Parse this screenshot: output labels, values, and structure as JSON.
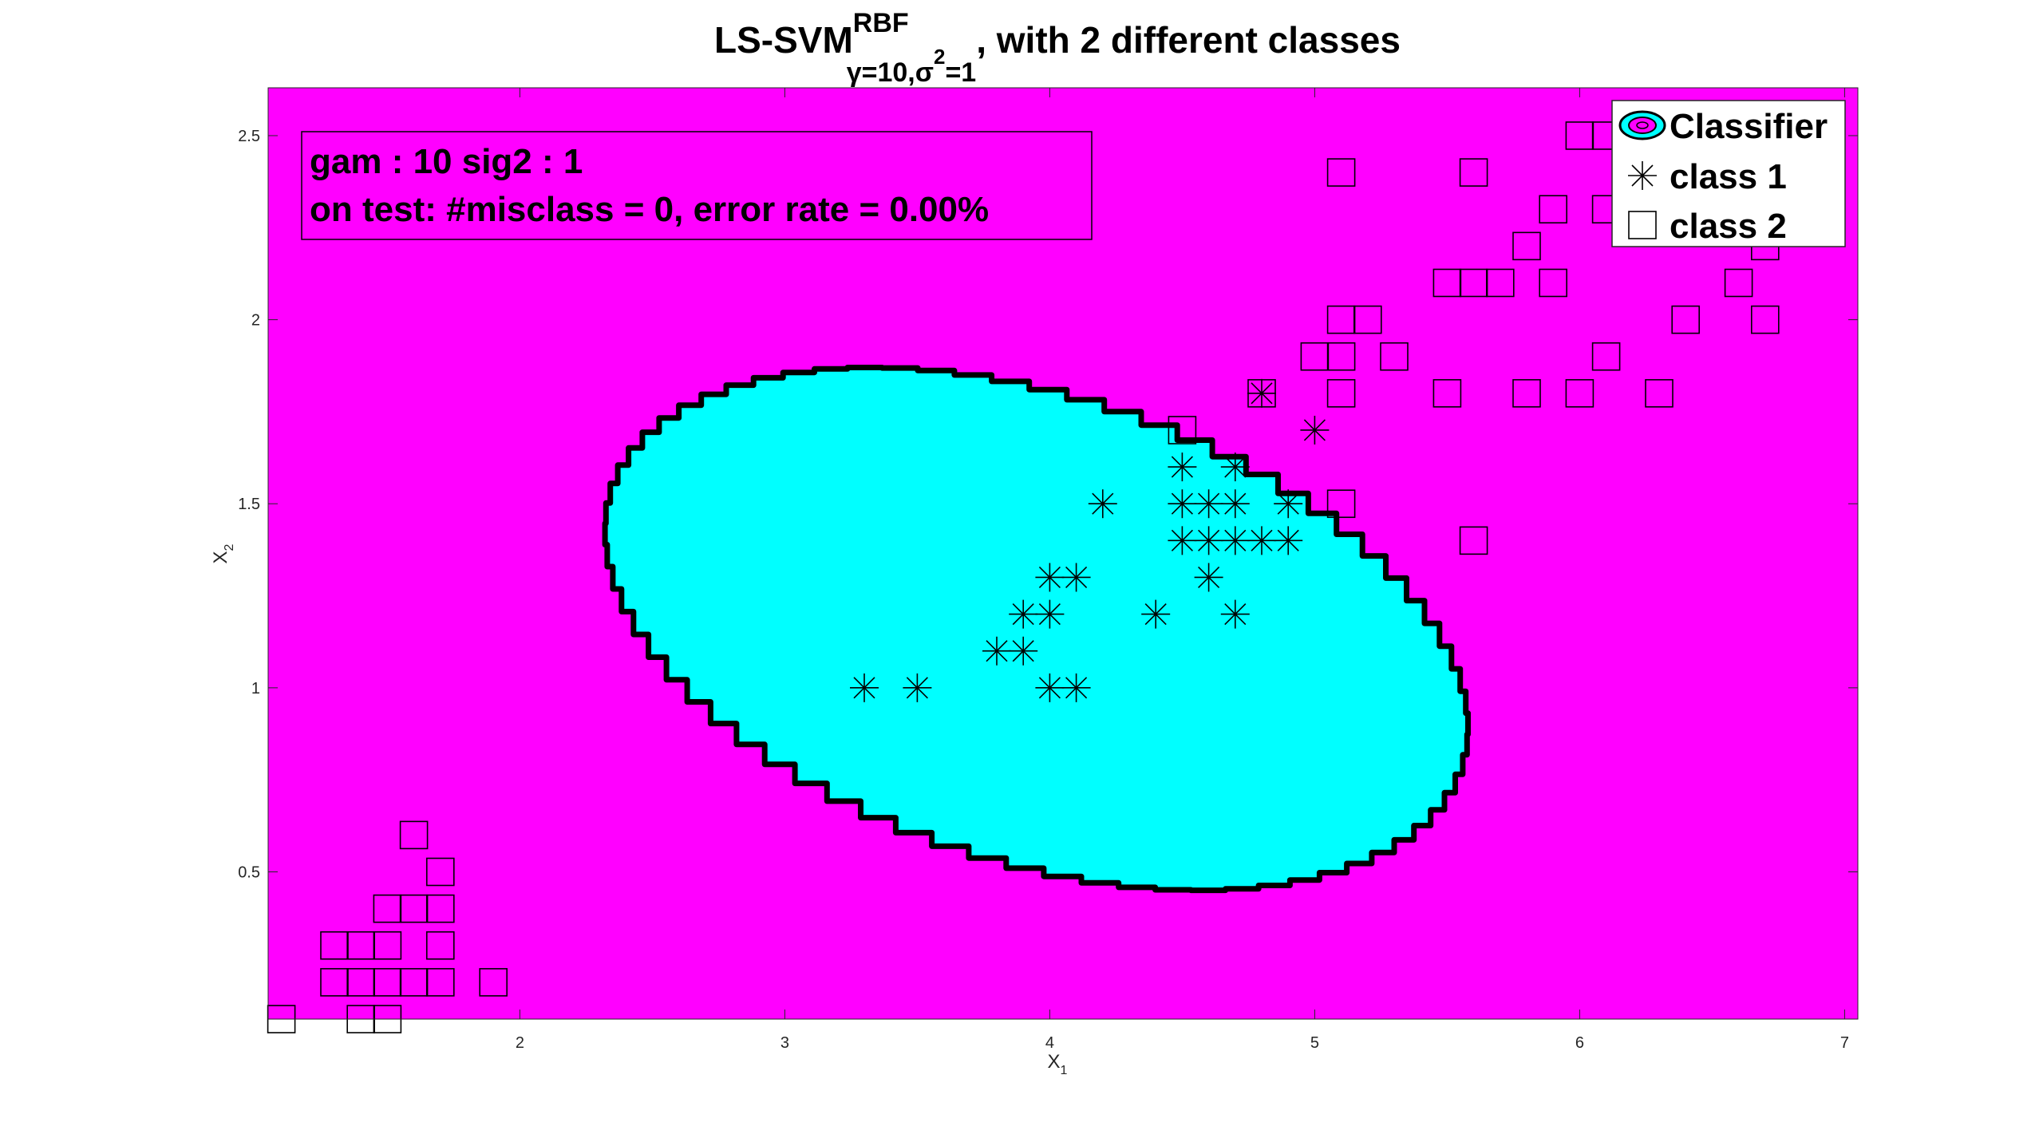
{
  "title": {
    "main": "LS-SVM",
    "sup": "RBF",
    "sub_gamma": "γ=10,",
    "sub_sigma": "σ",
    "sub_sigma_pow": "2",
    "sub_sigma_val": "=1",
    "rest": ", with 2 different classes"
  },
  "annotation": {
    "line1": "gam : 10   sig2 : 1",
    "line2": "on test: #misclass = 0, error rate = 0.00%"
  },
  "legend": {
    "items": [
      {
        "label": "Classifier",
        "marker": "contour-icon"
      },
      {
        "label": "class 1",
        "marker": "asterisk-icon"
      },
      {
        "label": "class 2",
        "marker": "square-icon"
      }
    ]
  },
  "colors": {
    "background_region": "#ff00ff",
    "classifier_region": "#00ffff",
    "boundary": "#000000",
    "markers": "#000000"
  },
  "chart_data": {
    "type": "scatter",
    "xlabel": "X",
    "xlabel_sub": "1",
    "ylabel": "X",
    "ylabel_sub": "2",
    "xlim": [
      1.05,
      7.05
    ],
    "ylim": [
      0.1,
      2.63
    ],
    "xticks": [
      2,
      3,
      4,
      5,
      6,
      7
    ],
    "yticks": [
      0.5,
      1,
      1.5,
      2,
      2.5
    ],
    "tick_labels_x": [
      "2",
      "3",
      "4",
      "5",
      "6",
      "7"
    ],
    "tick_labels_y": [
      "0.5",
      "1",
      "1.5",
      "2",
      "2.5"
    ],
    "boundary_ellipse": {
      "center": [
        3.95,
        1.16
      ],
      "semi_x": 1.65,
      "semi_y": 0.66,
      "rotation_deg": -10
    },
    "series": [
      {
        "name": "class 1",
        "marker": "asterisk",
        "points": [
          [
            3.3,
            1.0
          ],
          [
            3.5,
            1.0
          ],
          [
            4.0,
            1.0
          ],
          [
            4.1,
            1.0
          ],
          [
            3.8,
            1.1
          ],
          [
            3.9,
            1.1
          ],
          [
            3.9,
            1.2
          ],
          [
            4.0,
            1.2
          ],
          [
            4.4,
            1.2
          ],
          [
            4.7,
            1.2
          ],
          [
            4.0,
            1.3
          ],
          [
            4.1,
            1.3
          ],
          [
            4.6,
            1.3
          ],
          [
            4.5,
            1.4
          ],
          [
            4.6,
            1.4
          ],
          [
            4.7,
            1.4
          ],
          [
            4.8,
            1.4
          ],
          [
            4.9,
            1.4
          ],
          [
            4.2,
            1.5
          ],
          [
            4.5,
            1.5
          ],
          [
            4.6,
            1.5
          ],
          [
            4.7,
            1.5
          ],
          [
            4.9,
            1.5
          ],
          [
            4.5,
            1.6
          ],
          [
            4.7,
            1.6
          ],
          [
            5.0,
            1.7
          ],
          [
            4.8,
            1.8
          ]
        ]
      },
      {
        "name": "class 2",
        "marker": "square",
        "points": [
          [
            1.1,
            0.1
          ],
          [
            1.4,
            0.1
          ],
          [
            1.5,
            0.1
          ],
          [
            1.3,
            0.2
          ],
          [
            1.4,
            0.2
          ],
          [
            1.5,
            0.2
          ],
          [
            1.6,
            0.2
          ],
          [
            1.7,
            0.2
          ],
          [
            1.9,
            0.2
          ],
          [
            1.3,
            0.3
          ],
          [
            1.4,
            0.3
          ],
          [
            1.5,
            0.3
          ],
          [
            1.7,
            0.3
          ],
          [
            1.5,
            0.4
          ],
          [
            1.6,
            0.4
          ],
          [
            1.7,
            0.4
          ],
          [
            1.7,
            0.5
          ],
          [
            1.6,
            0.6
          ],
          [
            5.1,
            1.5
          ],
          [
            5.6,
            1.4
          ],
          [
            4.5,
            1.7
          ],
          [
            4.8,
            1.8
          ],
          [
            5.1,
            1.8
          ],
          [
            5.5,
            1.8
          ],
          [
            5.8,
            1.8
          ],
          [
            6.0,
            1.8
          ],
          [
            6.3,
            1.8
          ],
          [
            5.0,
            1.9
          ],
          [
            5.1,
            1.9
          ],
          [
            5.3,
            1.9
          ],
          [
            6.1,
            1.9
          ],
          [
            5.1,
            2.0
          ],
          [
            5.2,
            2.0
          ],
          [
            6.4,
            2.0
          ],
          [
            6.7,
            2.0
          ],
          [
            5.5,
            2.1
          ],
          [
            5.6,
            2.1
          ],
          [
            5.7,
            2.1
          ],
          [
            5.9,
            2.1
          ],
          [
            6.6,
            2.1
          ],
          [
            5.8,
            2.2
          ],
          [
            6.7,
            2.2
          ],
          [
            5.9,
            2.3
          ],
          [
            6.1,
            2.3
          ],
          [
            5.1,
            2.4
          ],
          [
            5.6,
            2.4
          ],
          [
            6.0,
            2.5
          ],
          [
            6.1,
            2.5
          ]
        ]
      }
    ]
  }
}
